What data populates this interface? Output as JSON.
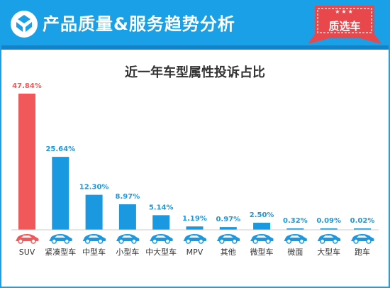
{
  "header": {
    "title": "产品质量&服务趋势分析",
    "badge_label": "质选车",
    "badge_stars": "★★★",
    "colors": {
      "header_bg": "#1aa0e6",
      "badge_bg": "#e8484c"
    }
  },
  "chart_data": {
    "type": "bar",
    "title": "近一年车型属性投诉占比",
    "categories": [
      "SUV",
      "紧凑型车",
      "中型车",
      "小型车",
      "中大型车",
      "MPV",
      "其他",
      "微型车",
      "微面",
      "大型车",
      "跑车"
    ],
    "values": [
      47.84,
      25.64,
      12.3,
      8.97,
      5.14,
      1.19,
      0.97,
      2.5,
      0.32,
      0.09,
      0.02
    ],
    "value_labels": [
      "47.84%",
      "25.64%",
      "12.30%",
      "8.97%",
      "5.14%",
      "1.19%",
      "0.97%",
      "2.50%",
      "0.32%",
      "0.09%",
      "0.02%"
    ],
    "unit": "%",
    "highlight_index": 0,
    "colors": {
      "highlight": "#f0585a",
      "default": "#1a98e0",
      "baseline": "#cccccc"
    },
    "car_icons": [
      "suv-icon",
      "hatchback-icon",
      "sedan-icon",
      "hatchback-icon",
      "sedan-icon",
      "minivan-icon",
      "sedan-icon",
      "microcar-icon",
      "microvan-icon",
      "sedan-icon",
      "sportscar-icon"
    ],
    "ylim": [
      0,
      47.84
    ],
    "grid": false,
    "legend": "none"
  }
}
